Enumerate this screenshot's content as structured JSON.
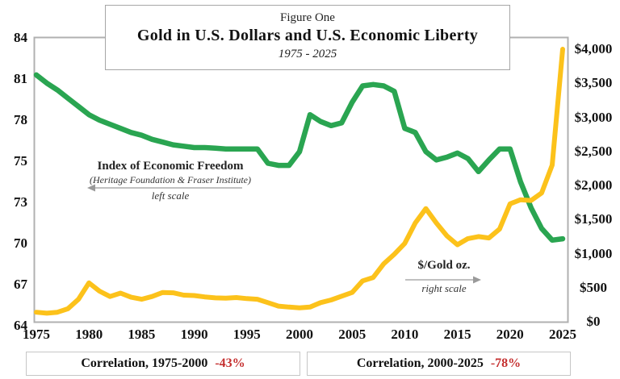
{
  "title_box": {
    "kicker": "Figure One",
    "title": "Gold in U.S. Dollars and U.S. Economic Liberty",
    "subtitle": "1975 - 2025"
  },
  "left_axis": {
    "labels": [
      "84",
      "81",
      "78",
      "75",
      "73",
      "70",
      "67",
      "64"
    ]
  },
  "right_axis": {
    "labels": [
      "$4,000",
      "$3,500",
      "$3,000",
      "$2,500",
      "$2,000",
      "$1,500",
      "$1,000",
      "$500",
      "$0"
    ]
  },
  "x_axis": {
    "labels": [
      "1975",
      "1980",
      "1985",
      "1990",
      "1995",
      "2000",
      "2005",
      "2010",
      "2015",
      "2020",
      "2025"
    ]
  },
  "annotations": {
    "freedom": {
      "line1": "Index of Economic Freedom",
      "line2": "(Heritage Foundation & Fraser Institute)",
      "line3": "left scale"
    },
    "gold": {
      "line1": "$/Gold oz.",
      "line2": "right scale"
    }
  },
  "footer": {
    "left": {
      "label": "Correlation, 1975-2000",
      "value": "-43%"
    },
    "right": {
      "label": "Correlation, 2000-2025",
      "value": "-78%"
    }
  },
  "colors": {
    "freedom_line": "#2aa551",
    "gold_line": "#fcc21b",
    "negative_value": "#c53030",
    "plot_border": "#b0b0b0",
    "arrow": "#9a9a9a"
  },
  "chart_data": {
    "type": "line",
    "title": "Gold in U.S. Dollars and U.S. Economic Liberty",
    "subtitle": "1975 - 2025",
    "x": [
      1975,
      1976,
      1977,
      1978,
      1979,
      1980,
      1981,
      1982,
      1983,
      1984,
      1985,
      1986,
      1987,
      1988,
      1989,
      1990,
      1991,
      1992,
      1993,
      1994,
      1995,
      1996,
      1997,
      1998,
      1999,
      2000,
      2001,
      2002,
      2003,
      2004,
      2005,
      2006,
      2007,
      2008,
      2009,
      2010,
      2011,
      2012,
      2013,
      2014,
      2015,
      2016,
      2017,
      2018,
      2019,
      2020,
      2021,
      2022,
      2023,
      2024,
      2025
    ],
    "series": [
      {
        "name": "Index of Economic Freedom (Heritage Foundation & Fraser Institute)",
        "axis": "left",
        "values": [
          81.3,
          80.7,
          80.2,
          79.6,
          79.0,
          78.4,
          78.0,
          77.7,
          77.4,
          77.1,
          76.9,
          76.6,
          76.4,
          76.2,
          76.1,
          76.0,
          76.0,
          75.95,
          75.9,
          75.9,
          75.9,
          75.9,
          74.9,
          74.8,
          74.8,
          75.7,
          78.4,
          77.9,
          77.6,
          77.8,
          79.3,
          80.5,
          80.6,
          80.5,
          80.1,
          77.4,
          77.1,
          75.7,
          75.1,
          75.3,
          75.6,
          75.2,
          74.5,
          75.1,
          75.9,
          75.9,
          74.0,
          72.6,
          71.1,
          70.25,
          70.35
        ]
      },
      {
        "name": "$/Gold oz.",
        "axis": "right",
        "values": [
          140,
          125,
          140,
          190,
          330,
          570,
          450,
          370,
          420,
          360,
          330,
          370,
          430,
          425,
          390,
          385,
          365,
          350,
          345,
          355,
          340,
          330,
          280,
          230,
          215,
          205,
          215,
          280,
          320,
          375,
          430,
          600,
          650,
          850,
          990,
          1150,
          1450,
          1660,
          1450,
          1260,
          1130,
          1220,
          1250,
          1230,
          1360,
          1730,
          1790,
          1780,
          1890,
          2300,
          4000
        ]
      }
    ],
    "left_axis_tick_values": [
      84,
      81,
      78,
      75,
      73,
      70,
      67,
      64
    ],
    "left_ylim_note": "left axis labels are equally spaced as printed (84,81,78,75,73,70,67,64)",
    "right_ylim": [
      0,
      4000
    ],
    "xlim": [
      1975,
      2025
    ],
    "grid": false,
    "legend_position": "in-plot annotations",
    "footer_stats": [
      {
        "label": "Correlation, 1975-2000",
        "value": "-43%"
      },
      {
        "label": "Correlation, 2000-2025",
        "value": "-78%"
      }
    ]
  }
}
